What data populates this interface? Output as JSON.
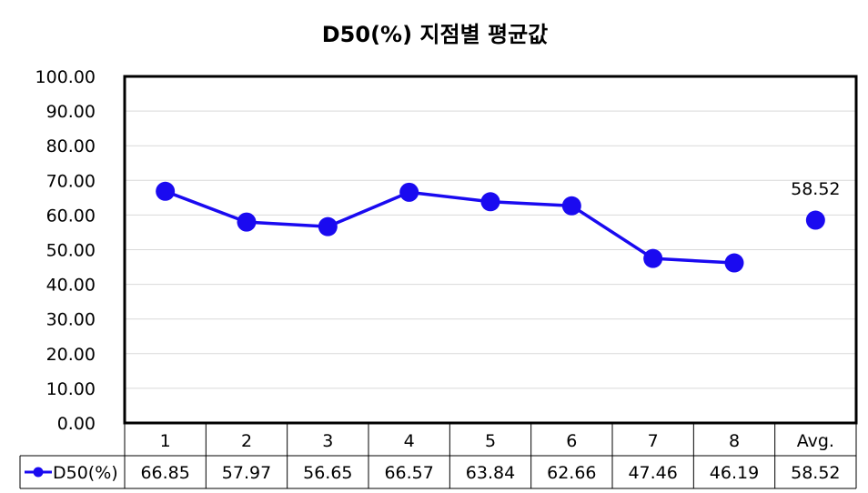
{
  "chart_data": {
    "type": "line",
    "title": "D50(%) 지점별 평균값",
    "categories": [
      "1",
      "2",
      "3",
      "4",
      "5",
      "6",
      "7",
      "8",
      "Avg."
    ],
    "series": [
      {
        "name": "D50(%)",
        "values": [
          66.85,
          57.97,
          56.65,
          66.57,
          63.84,
          62.66,
          47.46,
          46.19,
          58.52
        ]
      }
    ],
    "table_values": [
      "66.85",
      "57.97",
      "56.65",
      "66.57",
      "63.84",
      "62.66",
      "47.46",
      "46.19",
      "58.52"
    ],
    "connected_points": 8,
    "data_label": {
      "category": "Avg.",
      "text": "58.52"
    },
    "ylim": [
      0,
      100
    ],
    "yticks": [
      "0.00",
      "10.00",
      "20.00",
      "30.00",
      "40.00",
      "50.00",
      "60.00",
      "70.00",
      "80.00",
      "90.00",
      "100.00"
    ],
    "grid": true,
    "legend": "data-table",
    "colors": {
      "series": "#1a0af0",
      "grid": "#d9d9d9",
      "frame": "#000000"
    }
  }
}
